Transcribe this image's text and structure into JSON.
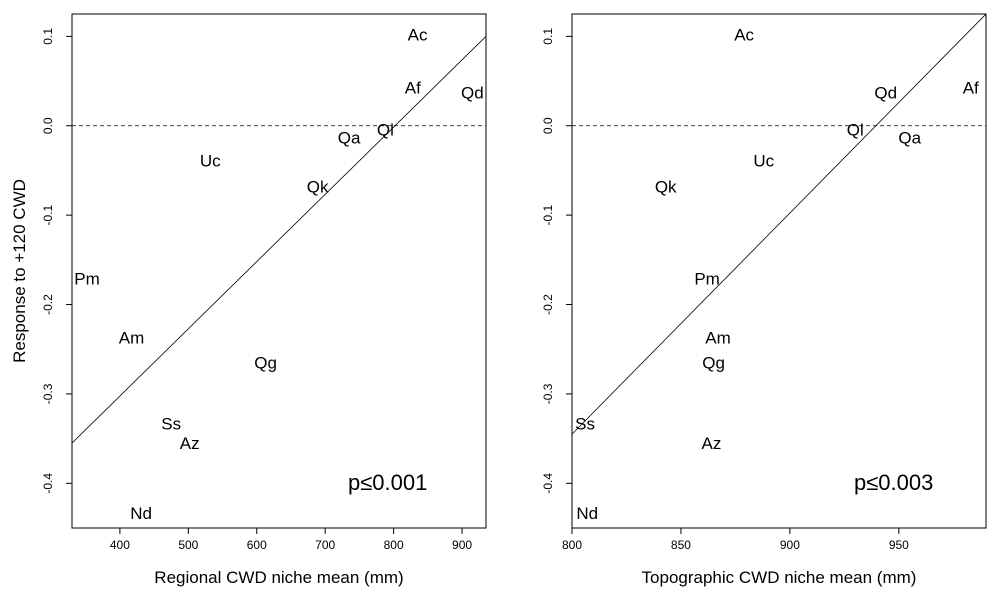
{
  "chart_data": [
    {
      "type": "scatter",
      "title": "",
      "xlabel": "Regional CWD niche mean (mm)",
      "ylabel": "Response to +120 CWD",
      "xlim": [
        330,
        935
      ],
      "ylim": [
        -0.45,
        0.125
      ],
      "xticks": [
        400,
        500,
        600,
        700,
        800,
        900
      ],
      "xtick_labels": [
        "400",
        "500",
        "600",
        "700",
        "800",
        "900"
      ],
      "yticks": [
        -0.4,
        -0.3,
        -0.2,
        -0.1,
        0.0,
        0.1
      ],
      "ytick_labels": [
        "-0.4",
        "-0.3",
        "-0.2",
        "-0.1",
        "0.0",
        "0.1"
      ],
      "grid": false,
      "reference_line_y": 0,
      "fit_line": [
        [
          330,
          -0.355
        ],
        [
          935,
          0.1
        ]
      ],
      "annotation": "p≤0.001",
      "points": [
        {
          "label": "Ac",
          "x": 835,
          "y": 0.102
        },
        {
          "label": "Af",
          "x": 828,
          "y": 0.043
        },
        {
          "label": "Qd",
          "x": 915,
          "y": 0.037
        },
        {
          "label": "Ql",
          "x": 788,
          "y": -0.004
        },
        {
          "label": "Qa",
          "x": 735,
          "y": -0.013
        },
        {
          "label": "Uc",
          "x": 532,
          "y": -0.039
        },
        {
          "label": "Qk",
          "x": 689,
          "y": -0.068
        },
        {
          "label": "Pm",
          "x": 352,
          "y": -0.171
        },
        {
          "label": "Am",
          "x": 417,
          "y": -0.237
        },
        {
          "label": "Qg",
          "x": 613,
          "y": -0.265
        },
        {
          "label": "Ss",
          "x": 475,
          "y": -0.333
        },
        {
          "label": "Az",
          "x": 502,
          "y": -0.355
        },
        {
          "label": "Nd",
          "x": 431,
          "y": -0.433
        }
      ]
    },
    {
      "type": "scatter",
      "title": "",
      "xlabel": "Topographic CWD niche mean (mm)",
      "ylabel": "",
      "xlim": [
        800,
        990
      ],
      "ylim": [
        -0.45,
        0.125
      ],
      "xticks": [
        800,
        850,
        900,
        950
      ],
      "xtick_labels": [
        "800",
        "850",
        "900",
        "950"
      ],
      "yticks": [
        -0.4,
        -0.3,
        -0.2,
        -0.1,
        0.0,
        0.1
      ],
      "ytick_labels": [
        "-0.4",
        "-0.3",
        "-0.2",
        "-0.1",
        "0.0",
        "0.1"
      ],
      "grid": false,
      "reference_line_y": 0,
      "fit_line": [
        [
          800,
          -0.345
        ],
        [
          990,
          0.125
        ]
      ],
      "annotation": "p≤0.003",
      "points": [
        {
          "label": "Ac",
          "x": 879,
          "y": 0.102
        },
        {
          "label": "Qd",
          "x": 944,
          "y": 0.037
        },
        {
          "label": "Af",
          "x": 983,
          "y": 0.043
        },
        {
          "label": "Ql",
          "x": 930,
          "y": -0.004
        },
        {
          "label": "Qa",
          "x": 955,
          "y": -0.013
        },
        {
          "label": "Uc",
          "x": 888,
          "y": -0.039
        },
        {
          "label": "Qk",
          "x": 843,
          "y": -0.068
        },
        {
          "label": "Pm",
          "x": 862,
          "y": -0.171
        },
        {
          "label": "Am",
          "x": 867,
          "y": -0.237
        },
        {
          "label": "Qg",
          "x": 865,
          "y": -0.265
        },
        {
          "label": "Az",
          "x": 864,
          "y": -0.355
        },
        {
          "label": "Ss",
          "x": 806,
          "y": -0.333
        },
        {
          "label": "Nd",
          "x": 807,
          "y": -0.433
        }
      ]
    }
  ]
}
